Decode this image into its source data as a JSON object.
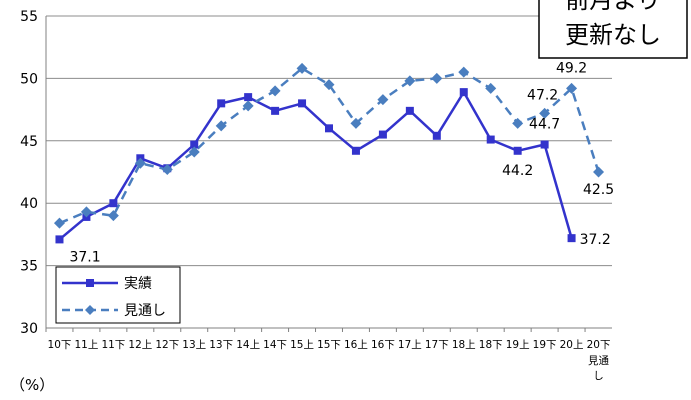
{
  "chart_data": {
    "type": "line",
    "title": "",
    "xlabel": "",
    "ylabel": "",
    "unit_label": "（%）",
    "ylim": [
      30,
      55
    ],
    "yticks": [
      30,
      35,
      40,
      45,
      50,
      55
    ],
    "categories": [
      "10下",
      "11上",
      "11下",
      "12上",
      "12下",
      "13上",
      "13下",
      "14上",
      "14下",
      "15上",
      "15下",
      "16上",
      "16下",
      "17上",
      "17下",
      "18上",
      "18下",
      "19上",
      "19下",
      "20上",
      "20下"
    ],
    "last_category_sub": [
      "見通",
      "し"
    ],
    "series": [
      {
        "name": "実績",
        "color": "#3333cc",
        "style": "solid",
        "marker": "square",
        "values": [
          37.1,
          38.9,
          40.0,
          43.6,
          42.8,
          44.7,
          48.0,
          48.5,
          47.4,
          48.0,
          46.0,
          44.2,
          45.5,
          47.4,
          45.4,
          48.9,
          45.1,
          44.2,
          44.7,
          37.2,
          null
        ]
      },
      {
        "name": "見通し",
        "color": "#4a7ebf",
        "style": "dashed",
        "marker": "diamond",
        "values": [
          38.4,
          39.3,
          39.0,
          43.2,
          42.7,
          44.1,
          46.2,
          47.8,
          49.0,
          50.8,
          49.5,
          46.4,
          48.3,
          49.8,
          50.0,
          50.5,
          49.2,
          46.4,
          47.2,
          49.2,
          42.5
        ]
      }
    ],
    "data_labels": [
      {
        "text": "37.1",
        "series": 0,
        "index": 0
      },
      {
        "text": "44.2",
        "series": 0,
        "index": 17
      },
      {
        "text": "44.7",
        "series": 0,
        "index": 18
      },
      {
        "text": "37.2",
        "series": 0,
        "index": 19
      },
      {
        "text": "47.2",
        "series": 1,
        "index": 18
      },
      {
        "text": "49.2",
        "series": 1,
        "index": 19
      },
      {
        "text": "42.5",
        "series": 1,
        "index": 20
      }
    ],
    "legend": {
      "position": "bottom-left",
      "items": [
        "実績",
        "見通し"
      ]
    },
    "grid": true,
    "callout": {
      "lines": [
        "前月より",
        "更新なし"
      ]
    }
  }
}
